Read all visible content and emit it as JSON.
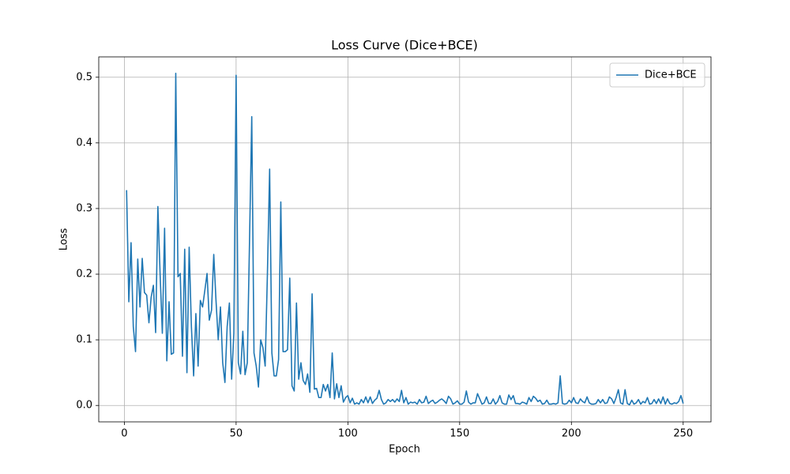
{
  "chart_data": {
    "type": "line",
    "title": "Loss Curve (Dice+BCE)",
    "x_label": "Epoch",
    "y_label": "Loss",
    "x": [
      1,
      2,
      3,
      4,
      5,
      6,
      7,
      8,
      9,
      10,
      11,
      12,
      13,
      14,
      15,
      16,
      17,
      18,
      19,
      20,
      21,
      22,
      23,
      24,
      25,
      26,
      27,
      28,
      29,
      30,
      31,
      32,
      33,
      34,
      35,
      36,
      37,
      38,
      39,
      40,
      41,
      42,
      43,
      44,
      45,
      46,
      47,
      48,
      49,
      50,
      51,
      52,
      53,
      54,
      55,
      56,
      57,
      58,
      59,
      60,
      61,
      62,
      63,
      64,
      65,
      66,
      67,
      68,
      69,
      70,
      71,
      72,
      73,
      74,
      75,
      76,
      77,
      78,
      79,
      80,
      81,
      82,
      83,
      84,
      85,
      86,
      87,
      88,
      89,
      90,
      91,
      92,
      93,
      94,
      95,
      96,
      97,
      98,
      99,
      100,
      101,
      102,
      103,
      104,
      105,
      106,
      107,
      108,
      109,
      110,
      111,
      112,
      113,
      114,
      115,
      116,
      117,
      118,
      119,
      120,
      121,
      122,
      123,
      124,
      125,
      126,
      127,
      128,
      129,
      130,
      131,
      132,
      133,
      134,
      135,
      136,
      137,
      138,
      139,
      140,
      141,
      142,
      143,
      144,
      145,
      146,
      147,
      148,
      149,
      150,
      151,
      152,
      153,
      154,
      155,
      156,
      157,
      158,
      159,
      160,
      161,
      162,
      163,
      164,
      165,
      166,
      167,
      168,
      169,
      170,
      171,
      172,
      173,
      174,
      175,
      176,
      177,
      178,
      179,
      180,
      181,
      182,
      183,
      184,
      185,
      186,
      187,
      188,
      189,
      190,
      191,
      192,
      193,
      194,
      195,
      196,
      197,
      198,
      199,
      200,
      201,
      202,
      203,
      204,
      205,
      206,
      207,
      208,
      209,
      210,
      211,
      212,
      213,
      214,
      215,
      216,
      217,
      218,
      219,
      220,
      221,
      222,
      223,
      224,
      225,
      226,
      227,
      228,
      229,
      230,
      231,
      232,
      233,
      234,
      235,
      236,
      237,
      238,
      239,
      240,
      241,
      242,
      243,
      244,
      245,
      246,
      247,
      248,
      249,
      250
    ],
    "series": [
      {
        "name": "Dice+BCE",
        "color": "#1f77b4",
        "values": [
          0.328,
          0.158,
          0.248,
          0.12,
          0.082,
          0.223,
          0.15,
          0.224,
          0.172,
          0.168,
          0.126,
          0.165,
          0.183,
          0.111,
          0.303,
          0.2,
          0.11,
          0.27,
          0.068,
          0.158,
          0.078,
          0.08,
          0.506,
          0.196,
          0.201,
          0.075,
          0.238,
          0.05,
          0.241,
          0.12,
          0.045,
          0.14,
          0.06,
          0.16,
          0.15,
          0.175,
          0.201,
          0.13,
          0.145,
          0.23,
          0.16,
          0.1,
          0.15,
          0.065,
          0.035,
          0.12,
          0.156,
          0.04,
          0.11,
          0.503,
          0.065,
          0.048,
          0.113,
          0.047,
          0.065,
          0.25,
          0.44,
          0.08,
          0.06,
          0.028,
          0.1,
          0.088,
          0.06,
          0.2,
          0.36,
          0.08,
          0.045,
          0.045,
          0.07,
          0.31,
          0.082,
          0.082,
          0.085,
          0.194,
          0.03,
          0.022,
          0.156,
          0.04,
          0.065,
          0.038,
          0.032,
          0.048,
          0.02,
          0.17,
          0.025,
          0.026,
          0.012,
          0.012,
          0.032,
          0.022,
          0.032,
          0.012,
          0.08,
          0.01,
          0.033,
          0.012,
          0.03,
          0.005,
          0.012,
          0.015,
          0.004,
          0.011,
          0.002,
          0.004,
          0.002,
          0.009,
          0.004,
          0.013,
          0.004,
          0.013,
          0.003,
          0.008,
          0.011,
          0.023,
          0.009,
          0.002,
          0.004,
          0.009,
          0.006,
          0.009,
          0.005,
          0.01,
          0.006,
          0.023,
          0.004,
          0.012,
          0.002,
          0.005,
          0.004,
          0.005,
          0.002,
          0.009,
          0.004,
          0.005,
          0.014,
          0.003,
          0.006,
          0.008,
          0.003,
          0.005,
          0.008,
          0.01,
          0.007,
          0.003,
          0.014,
          0.01,
          0.002,
          0.004,
          0.007,
          0.002,
          0.002,
          0.005,
          0.022,
          0.005,
          0.002,
          0.004,
          0.004,
          0.018,
          0.01,
          0.002,
          0.004,
          0.013,
          0.003,
          0.003,
          0.01,
          0.002,
          0.006,
          0.015,
          0.004,
          0.002,
          0.002,
          0.016,
          0.009,
          0.015,
          0.003,
          0.003,
          0.002,
          0.005,
          0.004,
          0.002,
          0.012,
          0.006,
          0.014,
          0.011,
          0.006,
          0.008,
          0.002,
          0.003,
          0.008,
          0.002,
          0.002,
          0.003,
          0.002,
          0.004,
          0.045,
          0.003,
          0.002,
          0.003,
          0.008,
          0.004,
          0.012,
          0.004,
          0.003,
          0.01,
          0.006,
          0.004,
          0.013,
          0.004,
          0.002,
          0.002,
          0.003,
          0.009,
          0.004,
          0.009,
          0.003,
          0.004,
          0.013,
          0.01,
          0.003,
          0.012,
          0.024,
          0.004,
          0.002,
          0.024,
          0.003,
          0.001,
          0.008,
          0.002,
          0.004,
          0.009,
          0.002,
          0.006,
          0.004,
          0.012,
          0.002,
          0.003,
          0.009,
          0.003,
          0.01,
          0.003,
          0.013,
          0.002,
          0.01,
          0.003,
          0.002,
          0.004,
          0.003,
          0.006,
          0.015,
          0.003
        ]
      }
    ],
    "xlim": [
      -11.45,
      262.45
    ],
    "ylim": [
      -0.025,
      0.531
    ],
    "xticks": [
      0,
      50,
      100,
      150,
      200,
      250
    ],
    "yticks": [
      {
        "value": 0,
        "label": "0.0"
      },
      0.1,
      0.2,
      0.3,
      0.4,
      0.5
    ],
    "grid": true,
    "legend": "upper right"
  }
}
